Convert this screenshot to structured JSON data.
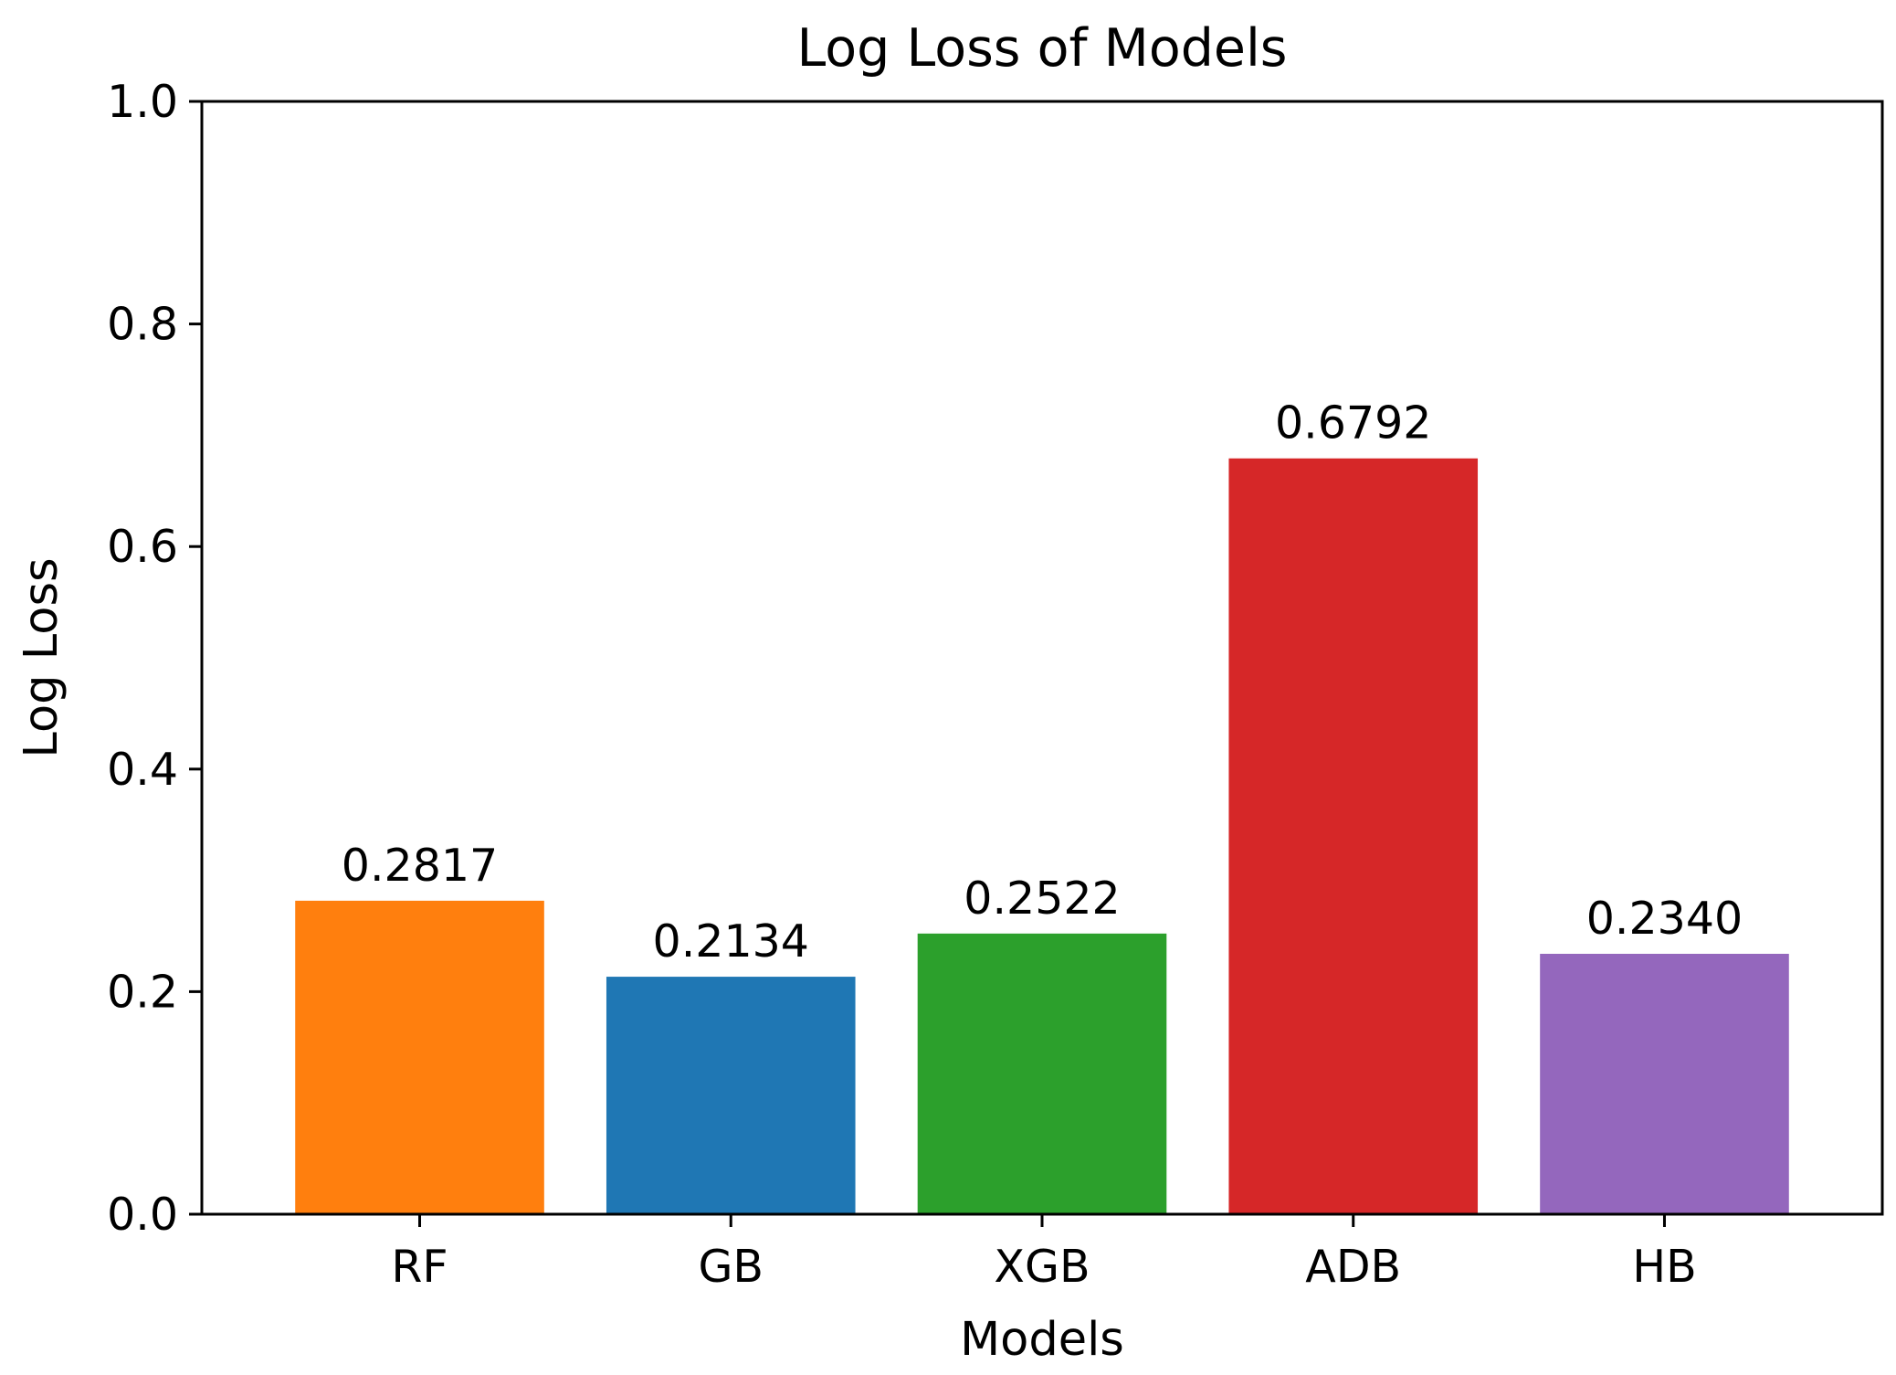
{
  "chart_data": {
    "type": "bar",
    "title": "Log Loss of Models",
    "xlabel": "Models",
    "ylabel": "Log Loss",
    "ylim": [
      0.0,
      1.0
    ],
    "yticks": [
      "0.0",
      "0.2",
      "0.4",
      "0.6",
      "0.8",
      "1.0"
    ],
    "ytick_values": [
      0.0,
      0.2,
      0.4,
      0.6,
      0.8,
      1.0
    ],
    "categories": [
      "RF",
      "GB",
      "XGB",
      "ADB",
      "HB"
    ],
    "values": [
      0.2817,
      0.2134,
      0.2522,
      0.6792,
      0.234
    ],
    "value_labels": [
      "0.2817",
      "0.2134",
      "0.2522",
      "0.6792",
      "0.2340"
    ],
    "colors": [
      "#ff7f0e",
      "#1f77b4",
      "#2ca02c",
      "#d62728",
      "#9467bd"
    ],
    "grid": false,
    "legend": "none"
  }
}
